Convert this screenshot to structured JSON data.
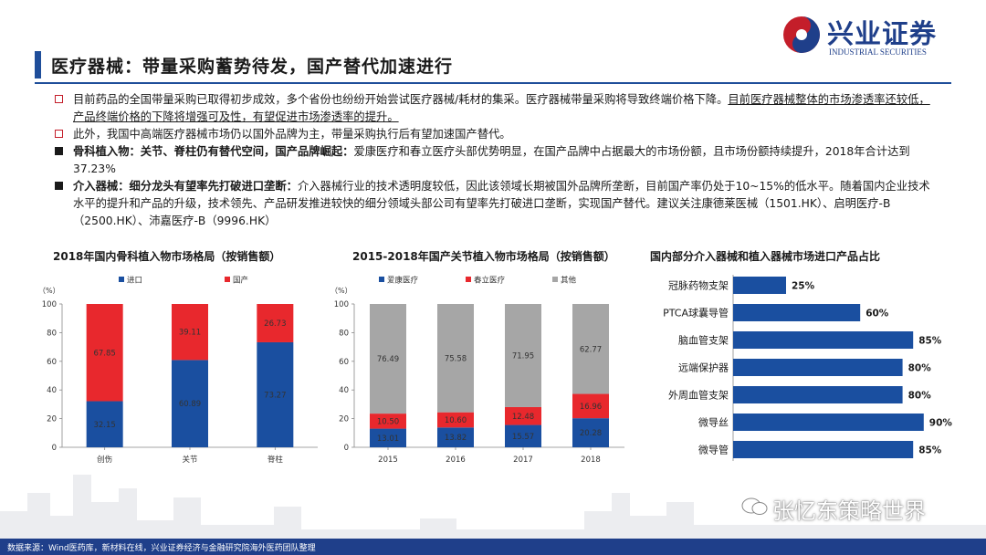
{
  "page_title": "医疗器械：带量采购蓄势待发，国产替代加速进行",
  "logo": {
    "name": "兴业证券",
    "sub": "INDUSTRIAL SECURITIES"
  },
  "bullets": [
    {
      "parts": [
        {
          "t": "目前药品的全国带量采购已取得初步成效，多个省份也纷纷开始尝试医疗器械/耗材的集采。医疗器械带量采购将导致终端价格下降。",
          "s": ""
        },
        {
          "t": "目前医疗器械整体的市场渗透率还较低，产品终端价格的下降将增强可及性，有望促进市场渗透率的提升。",
          "s": "uline"
        }
      ]
    },
    {
      "parts": [
        {
          "t": "此外，我国中高端医疗器械市场仍以国外品牌为主，带量采购执行后有望加速国产替代。",
          "s": ""
        }
      ]
    },
    {
      "parts": [
        {
          "t": "骨科植入物：关节、脊柱仍有替代空间，国产品牌崛起：",
          "s": "bold"
        },
        {
          "t": "爱康医疗和春立医疗头部优势明显，在国产品牌中占据最大的市场份额，且市场份额持续提升，2018年合计达到37.23%",
          "s": ""
        }
      ]
    },
    {
      "parts": [
        {
          "t": "介入器械：细分龙头有望率先打破进口垄断：",
          "s": "bold"
        },
        {
          "t": "介入器械行业的技术透明度较低，因此该领域长期被国外品牌所垄断，目前国产率仍处于10~15%的低水平。随着国内企业技术水平的提升和产品的升级，技术领先、产品研发推进较快的细分领域头部公司有望率先打破进口垄断，实现国产替代。建议关注康德莱医械（1501.HK）、启明医疗-B（2500.HK）、沛嘉医疗-B（9996.HK）",
          "s": ""
        }
      ]
    }
  ],
  "footer": "数据来源：Wind医药库，新材料在线，兴业证券经济与金融研究院海外医药团队整理",
  "watermark": "张忆东策略世界",
  "colors": {
    "blue": "#1a4fa0",
    "red": "#e8282d",
    "gray": "#a6a6a6",
    "brand": "#1f3f8a"
  },
  "chart_data": [
    {
      "type": "bar",
      "stacked": true,
      "title": "2018年国内骨科植入物市场格局（按销售额）",
      "unit_label": "（%）",
      "categories": [
        "创伤",
        "关节",
        "脊柱"
      ],
      "series": [
        {
          "name": "进口",
          "color": "#1a4fa0",
          "values": [
            32.15,
            60.89,
            73.27
          ]
        },
        {
          "name": "国产",
          "color": "#e8282d",
          "values": [
            67.85,
            39.11,
            26.73
          ]
        }
      ],
      "ylim": [
        0,
        100
      ],
      "yticks": [
        0,
        20,
        40,
        60,
        80,
        100
      ],
      "legend": "top"
    },
    {
      "type": "bar",
      "stacked": true,
      "title": "2015-2018年国产关节植入物市场格局（按销售额）",
      "unit_label": "（%）",
      "categories": [
        "2015",
        "2016",
        "2017",
        "2018"
      ],
      "series": [
        {
          "name": "爱康医疗",
          "color": "#1a4fa0",
          "values": [
            13.01,
            13.82,
            15.57,
            20.28
          ]
        },
        {
          "name": "春立医疗",
          "color": "#e8282d",
          "values": [
            10.5,
            10.6,
            12.48,
            16.96
          ]
        },
        {
          "name": "其他",
          "color": "#a6a6a6",
          "values": [
            76.49,
            75.58,
            71.95,
            62.77
          ]
        }
      ],
      "ylim": [
        0,
        100
      ],
      "yticks": [
        0,
        20,
        40,
        60,
        80,
        100
      ],
      "legend": "top"
    },
    {
      "type": "bar",
      "orientation": "horizontal",
      "title": "国内部分介入器械和植入器械市场进口产品占比",
      "categories": [
        "冠脉药物支架",
        "PTCA球囊导管",
        "脑血管支架",
        "远端保护器",
        "外周血管支架",
        "微导丝",
        "微导管"
      ],
      "values": [
        25,
        60,
        85,
        80,
        80,
        90,
        85
      ],
      "value_labels": [
        "25%",
        "60%",
        "85%",
        "80%",
        "80%",
        "90%",
        "85%"
      ],
      "color": "#1a4fa0",
      "xlim": [
        0,
        100
      ]
    }
  ]
}
